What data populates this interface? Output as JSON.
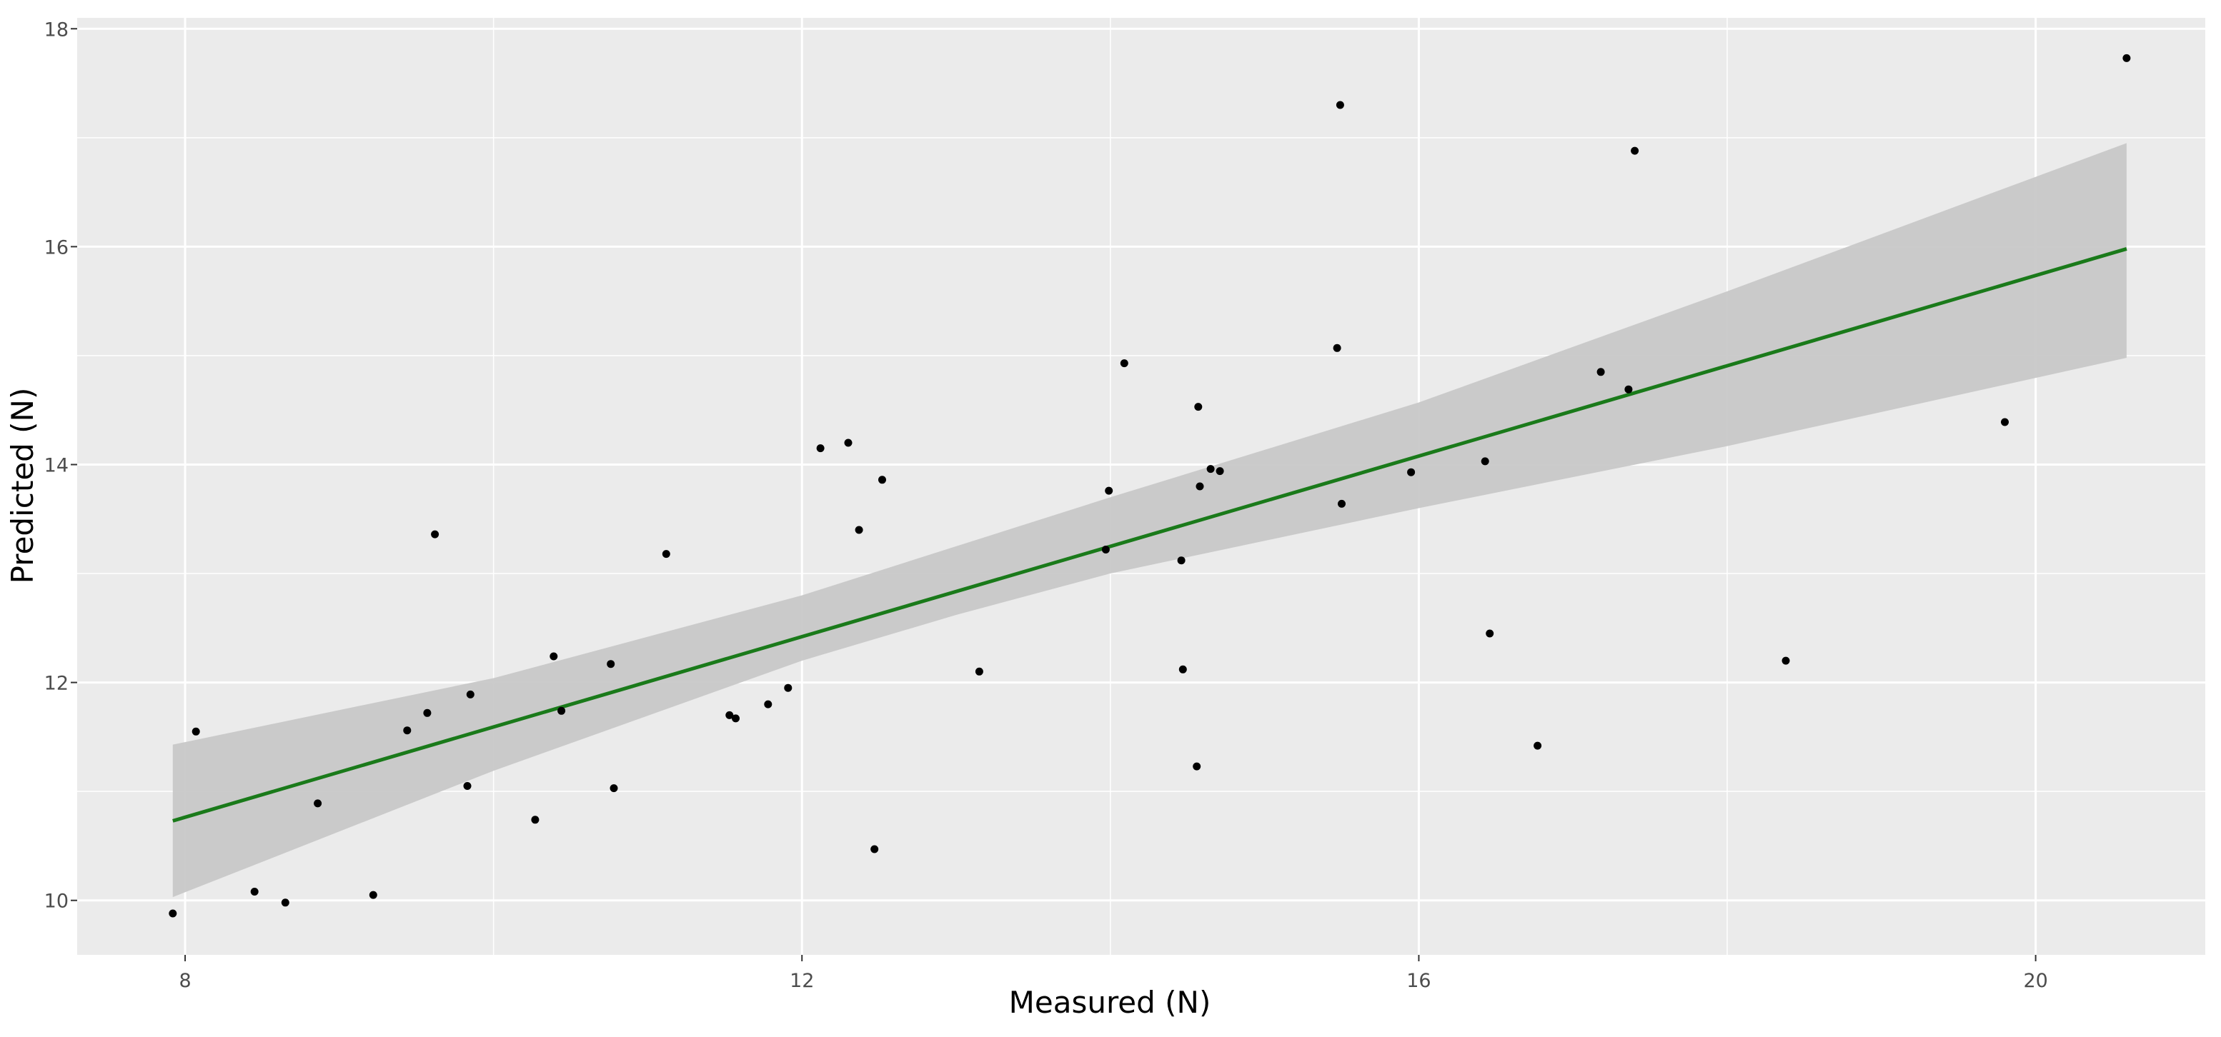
{
  "chart_data": {
    "type": "scatter",
    "title": "",
    "xlabel": "Measured (N)",
    "ylabel": "Predicted (N)",
    "xlim": [
      7.3,
      21.1
    ],
    "ylim": [
      9.5,
      18.1
    ],
    "x_ticks": [
      "8",
      "12",
      "16",
      "20"
    ],
    "y_ticks": [
      "10",
      "12",
      "14",
      "16",
      "18"
    ],
    "grid": true,
    "legend": "none",
    "colors": {
      "panel_background": "#ebebeb",
      "grid": "#ffffff",
      "points": "#000000",
      "fit_line": "#1a7a1a",
      "confidence_band": "#c8c8c8"
    },
    "series": [
      {
        "type": "points",
        "x": [
          7.92,
          8.07,
          8.45,
          8.65,
          8.86,
          9.22,
          9.44,
          9.57,
          9.62,
          9.83,
          9.85,
          10.27,
          10.39,
          10.44,
          10.76,
          10.78,
          11.12,
          11.53,
          11.57,
          11.78,
          11.91,
          12.12,
          12.3,
          12.37,
          12.47,
          12.52,
          13.15,
          13.97,
          13.99,
          14.09,
          14.46,
          14.47,
          14.56,
          14.57,
          14.58,
          14.65,
          14.71,
          15.47,
          15.49,
          15.5,
          15.95,
          16.43,
          16.46,
          16.77,
          17.18,
          17.36,
          17.4,
          18.38,
          19.8,
          20.59
        ],
        "y": [
          9.88,
          11.55,
          10.08,
          9.98,
          10.89,
          10.05,
          11.56,
          11.72,
          13.36,
          11.05,
          11.89,
          10.74,
          12.24,
          11.74,
          12.17,
          11.03,
          13.18,
          11.7,
          11.67,
          11.8,
          11.95,
          14.15,
          14.2,
          13.4,
          10.47,
          13.86,
          12.1,
          13.22,
          13.76,
          14.93,
          13.12,
          12.12,
          11.23,
          14.53,
          13.8,
          13.96,
          13.94,
          15.07,
          17.3,
          13.64,
          13.93,
          14.03,
          12.45,
          11.42,
          14.85,
          14.69,
          16.88,
          12.2,
          14.39,
          17.73
        ]
      },
      {
        "type": "line",
        "name": "",
        "x": [
          7.92,
          20.59
        ],
        "y": [
          10.73,
          15.98
        ]
      },
      {
        "type": "band",
        "name": "",
        "x": [
          7.92,
          10.0,
          12.0,
          13.0,
          14.0,
          16.0,
          18.0,
          20.59
        ],
        "lower": [
          10.03,
          11.19,
          12.2,
          12.62,
          13.0,
          13.6,
          14.17,
          14.98
        ],
        "upper": [
          11.43,
          12.04,
          12.8,
          13.25,
          13.7,
          14.57,
          15.59,
          16.95
        ]
      }
    ]
  }
}
